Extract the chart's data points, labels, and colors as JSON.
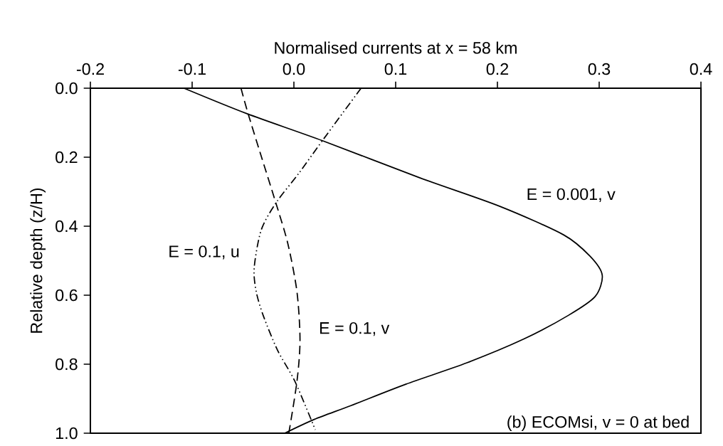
{
  "chart_data": {
    "type": "line",
    "xlabel": "Normalised currents at x = 58 km",
    "ylabel": "Relative depth (z/H)",
    "xlim": [
      -0.2,
      0.4
    ],
    "ylim": [
      1.0,
      0.0
    ],
    "xticks": [
      {
        "value": -0.2,
        "label": "-0.2"
      },
      {
        "value": -0.1,
        "label": "-0.1"
      },
      {
        "value": 0.0,
        "label": "0.0"
      },
      {
        "value": 0.1,
        "label": "0.1"
      },
      {
        "value": 0.2,
        "label": "0.2"
      },
      {
        "value": 0.3,
        "label": "0.3"
      },
      {
        "value": 0.4,
        "label": "0.4"
      }
    ],
    "yticks": [
      {
        "value": 0.0,
        "label": "0.0"
      },
      {
        "value": 0.2,
        "label": "0.2"
      },
      {
        "value": 0.4,
        "label": "0.4"
      },
      {
        "value": 0.6,
        "label": "0.6"
      },
      {
        "value": 0.8,
        "label": "0.8"
      },
      {
        "value": 1.0,
        "label": "1.0"
      }
    ],
    "grid": false,
    "series": [
      {
        "color": "#000000",
        "line_style": "solid",
        "x": [
          -0.108,
          -0.046,
          0.028,
          0.124,
          0.202,
          0.265,
          0.291,
          0.303,
          0.296,
          0.27,
          0.226,
          0.17,
          0.11,
          0.056,
          0.02,
          -0.009
        ],
        "values": [
          0.0,
          0.074,
          0.152,
          0.26,
          0.342,
          0.425,
          0.487,
          0.542,
          0.604,
          0.658,
          0.727,
          0.796,
          0.858,
          0.92,
          0.96,
          1.0
        ]
      },
      {
        "color": "#000000",
        "line_style": "dashed",
        "x": [
          -0.052,
          -0.045,
          -0.032,
          -0.018,
          -0.006,
          0.003,
          0.006,
          0.003,
          -0.005
        ],
        "values": [
          0.0,
          0.074,
          0.198,
          0.33,
          0.45,
          0.59,
          0.73,
          0.85,
          1.0
        ]
      },
      {
        "color": "#000000",
        "line_style": "dashdotdotted",
        "x": [
          0.066,
          0.028,
          0.005,
          -0.017,
          -0.032,
          -0.039,
          -0.037,
          -0.03,
          -0.016,
          0.001,
          0.021
        ],
        "values": [
          0.0,
          0.152,
          0.246,
          0.33,
          0.41,
          0.52,
          0.59,
          0.66,
          0.76,
          0.85,
          0.99
        ]
      }
    ],
    "annotations": [
      "E = 0.001, v",
      "E = 0.1, u",
      "E = 0.1, v",
      "(b) ECOMsi, v = 0 at bed"
    ]
  }
}
